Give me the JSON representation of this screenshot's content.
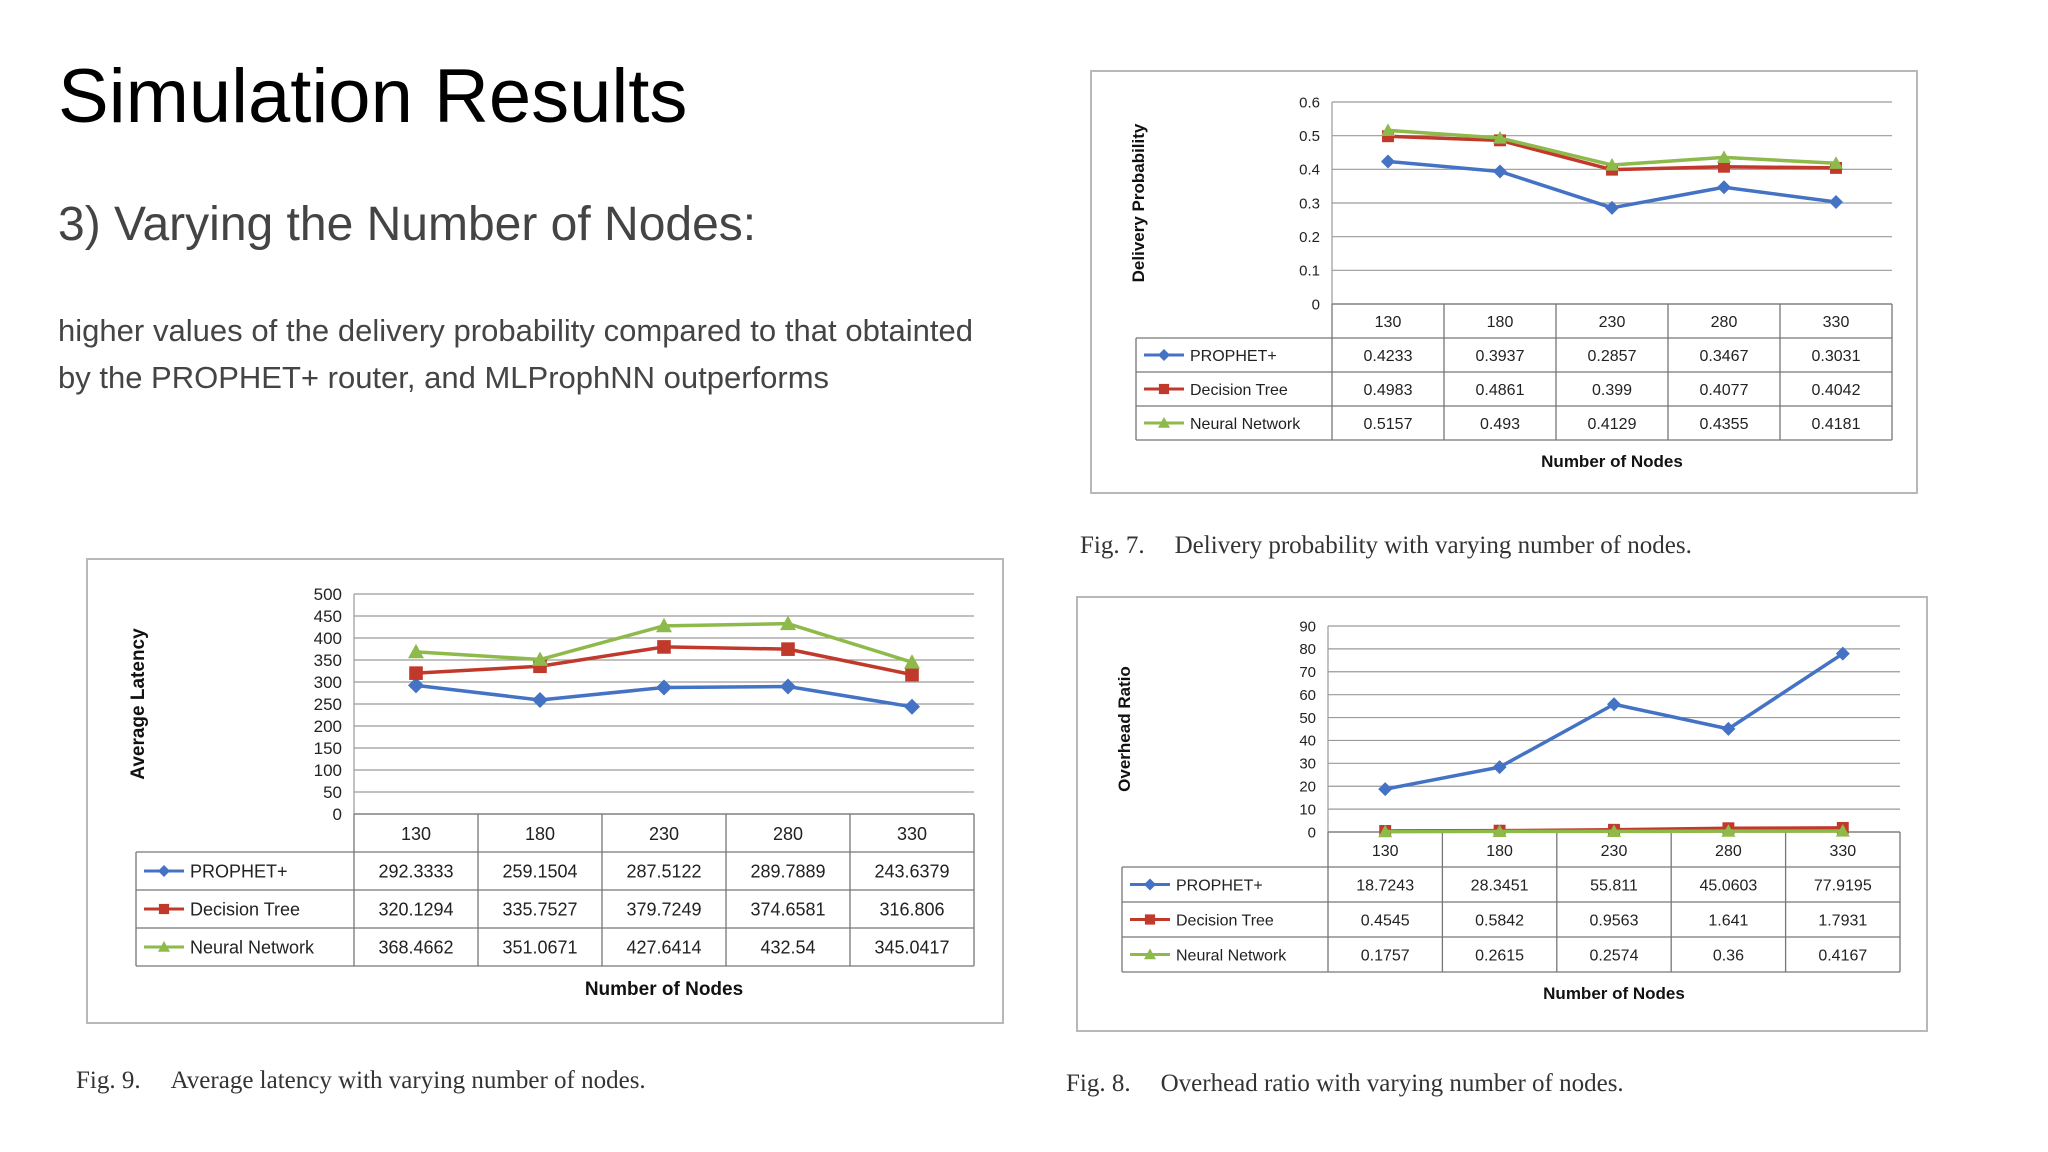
{
  "slide": {
    "title": "Simulation Results",
    "subtitle": "3) Varying the Number of Nodes:",
    "body": "higher values of the delivery probability compared to that obtainted by the PROPHET+ router, and MLProphNN outperforms"
  },
  "colors": {
    "prophet": "#4472c4",
    "decision_tree": "#c0392b",
    "neural_network": "#8dba4a"
  },
  "chart_data": [
    {
      "id": "fig7",
      "type": "line",
      "caption_num": "Fig. 7.",
      "caption_text": "Delivery probability with varying number of nodes.",
      "xlabel": "Number of Nodes",
      "ylabel": "Delivery Probability",
      "categories": [
        "130",
        "180",
        "230",
        "280",
        "330"
      ],
      "yticks": [
        "0",
        "0.1",
        "0.2",
        "0.3",
        "0.4",
        "0.5",
        "0.6"
      ],
      "ylim": [
        0,
        0.6
      ],
      "grid": true,
      "legend": "data-table",
      "series": [
        {
          "name": "PROPHET+",
          "marker": "diamond",
          "color": "#4472c4",
          "values": [
            0.4233,
            0.3937,
            0.2857,
            0.3467,
            0.3031
          ],
          "labels": [
            "0.4233",
            "0.3937",
            "0.2857",
            "0.3467",
            "0.3031"
          ]
        },
        {
          "name": "Decision Tree",
          "marker": "square",
          "color": "#c0392b",
          "values": [
            0.4983,
            0.4861,
            0.399,
            0.4077,
            0.4042
          ],
          "labels": [
            "0.4983",
            "0.4861",
            "0.399",
            "0.4077",
            "0.4042"
          ]
        },
        {
          "name": "Neural Network",
          "marker": "triangle",
          "color": "#8dba4a",
          "values": [
            0.5157,
            0.493,
            0.4129,
            0.4355,
            0.4181
          ],
          "labels": [
            "0.5157",
            "0.493",
            "0.4129",
            "0.4355",
            "0.4181"
          ]
        }
      ]
    },
    {
      "id": "fig8",
      "type": "line",
      "caption_num": "Fig. 8.",
      "caption_text": "Overhead ratio with varying number of nodes.",
      "xlabel": "Number of Nodes",
      "ylabel": "Overhead Ratio",
      "categories": [
        "130",
        "180",
        "230",
        "280",
        "330"
      ],
      "yticks": [
        "0",
        "10",
        "20",
        "30",
        "40",
        "50",
        "60",
        "70",
        "80",
        "90"
      ],
      "ylim": [
        0,
        90
      ],
      "grid": true,
      "legend": "data-table",
      "series": [
        {
          "name": "PROPHET+",
          "marker": "diamond",
          "color": "#4472c4",
          "values": [
            18.7243,
            28.3451,
            55.811,
            45.0603,
            77.9195
          ],
          "labels": [
            "18.7243",
            "28.3451",
            "55.811",
            "45.0603",
            "77.9195"
          ]
        },
        {
          "name": "Decision Tree",
          "marker": "square",
          "color": "#c0392b",
          "values": [
            0.4545,
            0.5842,
            0.9563,
            1.641,
            1.7931
          ],
          "labels": [
            "0.4545",
            "0.5842",
            "0.9563",
            "1.641",
            "1.7931"
          ]
        },
        {
          "name": "Neural Network",
          "marker": "triangle",
          "color": "#8dba4a",
          "values": [
            0.1757,
            0.2615,
            0.2574,
            0.36,
            0.4167
          ],
          "labels": [
            "0.1757",
            "0.2615",
            "0.2574",
            "0.36",
            "0.4167"
          ]
        }
      ]
    },
    {
      "id": "fig9",
      "type": "line",
      "caption_num": "Fig. 9.",
      "caption_text": "Average latency with varying number of nodes.",
      "xlabel": "Number of Nodes",
      "ylabel": "Average Latency",
      "categories": [
        "130",
        "180",
        "230",
        "280",
        "330"
      ],
      "yticks": [
        "0",
        "50",
        "100",
        "150",
        "200",
        "250",
        "300",
        "350",
        "400",
        "450",
        "500"
      ],
      "ylim": [
        0,
        500
      ],
      "grid": true,
      "legend": "data-table",
      "series": [
        {
          "name": "PROPHET+",
          "marker": "diamond",
          "color": "#4472c4",
          "values": [
            292.3333,
            259.1504,
            287.5122,
            289.7889,
            243.6379
          ],
          "labels": [
            "292.3333",
            "259.1504",
            "287.5122",
            "289.7889",
            "243.6379"
          ]
        },
        {
          "name": "Decision Tree",
          "marker": "square",
          "color": "#c0392b",
          "values": [
            320.1294,
            335.7527,
            379.7249,
            374.6581,
            316.806
          ],
          "labels": [
            "320.1294",
            "335.7527",
            "379.7249",
            "374.6581",
            "316.806"
          ]
        },
        {
          "name": "Neural Network",
          "marker": "triangle",
          "color": "#8dba4a",
          "values": [
            368.4662,
            351.0671,
            427.6414,
            432.54,
            345.0417
          ],
          "labels": [
            "368.4662",
            "351.0671",
            "427.6414",
            "432.54",
            "345.0417"
          ]
        }
      ]
    }
  ]
}
